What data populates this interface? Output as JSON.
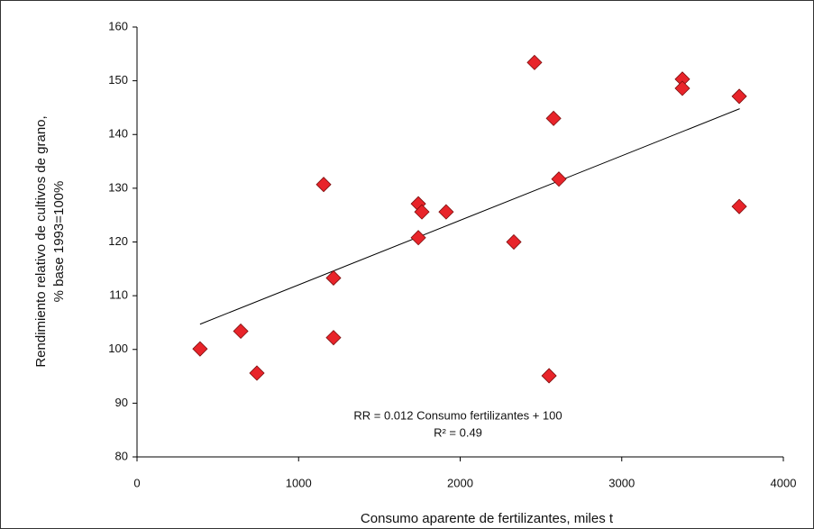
{
  "chart_data": {
    "type": "scatter",
    "x_label": "Consumo aparente de fertilizantes, miles t",
    "y_label": [
      "Rendimiento relativo de cultivos de grano,",
      "%  base 1993=100%"
    ],
    "annotations": [
      "RR = 0.012 Consumo fertilizantes + 100",
      "R² = 0.49"
    ],
    "color": "#e8242a",
    "x": [
      390,
      642,
      742,
      1155,
      1216,
      1216,
      1741,
      1763,
      1741,
      1913,
      2332,
      2460,
      2550,
      2578,
      2611,
      3375,
      3375,
      3727,
      3727
    ],
    "values": [
      100.1,
      103.4,
      95.6,
      130.7,
      113.3,
      102.2,
      127.1,
      125.6,
      120.8,
      125.6,
      120,
      153.4,
      95.1,
      143,
      131.7,
      150.3,
      148.6,
      147.1,
      126.6
    ],
    "trendline": {
      "x": [
        390,
        3730
      ],
      "y": [
        104.7,
        144.8
      ]
    },
    "xlim": [
      0,
      4000
    ],
    "xticks": [
      0,
      1000,
      2000,
      3000,
      4000
    ],
    "ylim": [
      80,
      160
    ],
    "yticks": [
      80,
      90,
      100,
      110,
      120,
      130,
      140,
      150,
      160
    ]
  }
}
